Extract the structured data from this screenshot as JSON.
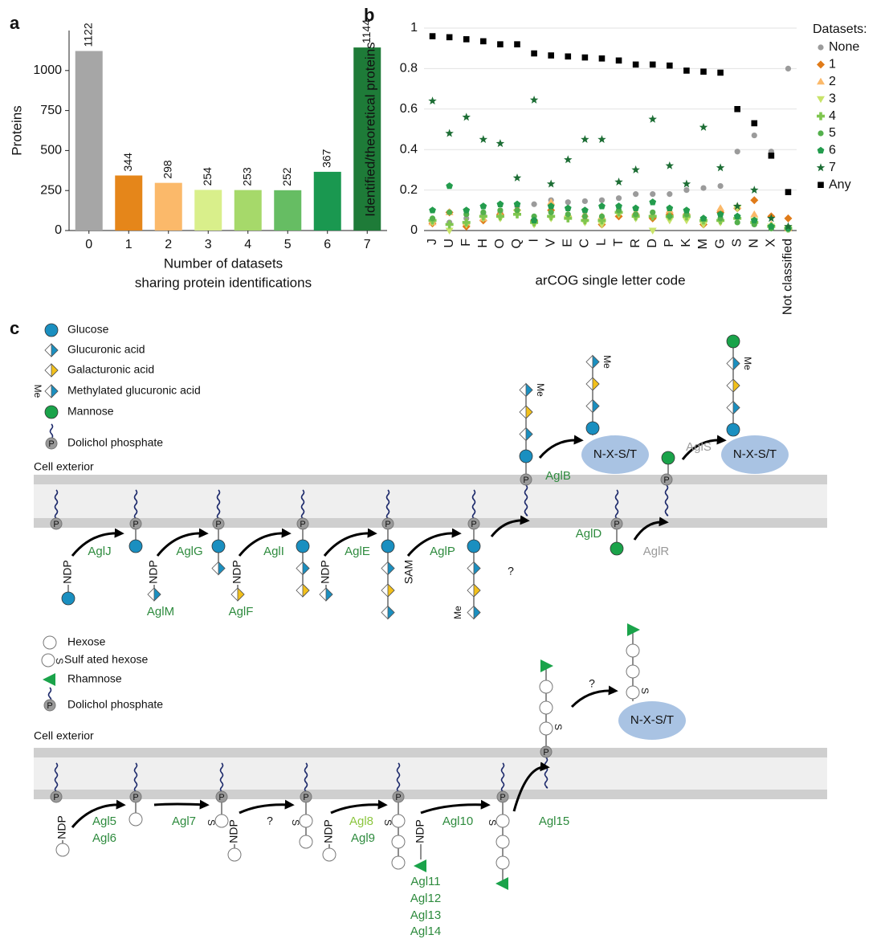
{
  "chart_data": [
    {
      "type": "bar",
      "panel_label": "a",
      "categories": [
        "0",
        "1",
        "2",
        "3",
        "4",
        "5",
        "6",
        "7"
      ],
      "values": [
        1122,
        344,
        298,
        254,
        253,
        252,
        367,
        1144
      ],
      "colors": [
        "#a6a6a6",
        "#e5861a",
        "#fbb96a",
        "#d9ef8b",
        "#a6d96a",
        "#66bd63",
        "#1a9850",
        "#1e7b38"
      ],
      "ylabel": "Proteins",
      "xlabel": [
        "Number of datasets",
        "sharing protein identifications"
      ],
      "ylim": [
        0,
        1250
      ],
      "yticks": [
        0,
        250,
        500,
        750,
        1000
      ]
    },
    {
      "type": "scatter",
      "panel_label": "b",
      "categories": [
        "J",
        "U",
        "F",
        "H",
        "O",
        "Q",
        "I",
        "V",
        "E",
        "C",
        "L",
        "T",
        "R",
        "D",
        "P",
        "K",
        "M",
        "G",
        "S",
        "N",
        "X",
        "Not classified"
      ],
      "ylabel": "Identified/theoretical proteins",
      "xlabel": "arCOG single letter code",
      "legend_title": "Datasets:",
      "ylim": [
        0,
        1
      ],
      "yticks": [
        0,
        0.2,
        0.4,
        0.6,
        0.8,
        1
      ],
      "grid": true,
      "series": [
        {
          "name": "None",
          "color": "#9b9b9b",
          "marker": "circle",
          "values": [
            0.05,
            0.04,
            0.06,
            0.08,
            0.09,
            0.12,
            0.13,
            0.15,
            0.14,
            0.145,
            0.15,
            0.16,
            0.18,
            0.18,
            0.18,
            0.2,
            0.21,
            0.22,
            0.39,
            0.47,
            0.39,
            0.8
          ]
        },
        {
          "name": "1",
          "color": "#e07b19",
          "marker": "diamond",
          "values": [
            0.035,
            0.09,
            0.02,
            0.05,
            0.08,
            0.1,
            0.05,
            0.1,
            0.07,
            0.05,
            0.03,
            0.07,
            0.08,
            0.06,
            0.08,
            0.08,
            0.03,
            0.09,
            0.11,
            0.15,
            0.07,
            0.06
          ]
        },
        {
          "name": "2",
          "color": "#fbb96a",
          "marker": "triangle-up",
          "values": [
            0.04,
            0.09,
            0.04,
            0.06,
            0.08,
            0.09,
            0.05,
            0.14,
            0.08,
            0.08,
            0.07,
            0.1,
            0.09,
            0.08,
            0.1,
            0.09,
            0.06,
            0.11,
            0.12,
            0.08,
            0.03,
            0.01
          ]
        },
        {
          "name": "3",
          "color": "#c8e36a",
          "marker": "triangle-down",
          "values": [
            0.04,
            0,
            0.03,
            0.06,
            0.06,
            0.09,
            0.03,
            0.06,
            0.06,
            0.04,
            0.03,
            0.08,
            0.06,
            0,
            0.05,
            0.05,
            0.03,
            0.04,
            0.11,
            0.05,
            0.02,
            0.01
          ]
        },
        {
          "name": "4",
          "color": "#7fc64f",
          "marker": "plus",
          "values": [
            0.05,
            0.03,
            0.04,
            0.07,
            0.07,
            0.08,
            0.04,
            0.07,
            0.06,
            0.05,
            0.05,
            0.09,
            0.07,
            0.07,
            0.07,
            0.07,
            0.05,
            0.05,
            0.06,
            0.04,
            0.02,
            0.01
          ]
        },
        {
          "name": "5",
          "color": "#54b04c",
          "marker": "circle",
          "values": [
            0.06,
            0.09,
            0.08,
            0.09,
            0.1,
            0.1,
            0.07,
            0.09,
            0.08,
            0.07,
            0.07,
            0.1,
            0.08,
            0.09,
            0.07,
            0.08,
            0.06,
            0.06,
            0.04,
            0.03,
            0.01,
            0.01
          ]
        },
        {
          "name": "6",
          "color": "#239c4d",
          "marker": "pentagon",
          "values": [
            0.1,
            0.22,
            0.1,
            0.12,
            0.13,
            0.13,
            0.05,
            0.12,
            0.11,
            0.1,
            0.12,
            0.12,
            0.11,
            0.14,
            0.11,
            0.1,
            0.06,
            0.08,
            0.07,
            0.05,
            0.02,
            0.01
          ]
        },
        {
          "name": "7",
          "color": "#1d6e35",
          "marker": "star",
          "values": [
            0.64,
            0.48,
            0.56,
            0.45,
            0.43,
            0.26,
            0.645,
            0.23,
            0.35,
            0.45,
            0.45,
            0.24,
            0.3,
            0.55,
            0.32,
            0.23,
            0.51,
            0.31,
            0.12,
            0.2,
            0.06,
            0.02
          ]
        },
        {
          "name": "Any",
          "color": "#000000",
          "marker": "square",
          "values": [
            0.96,
            0.955,
            0.945,
            0.935,
            0.92,
            0.92,
            0.875,
            0.865,
            0.86,
            0.855,
            0.85,
            0.84,
            0.82,
            0.82,
            0.815,
            0.79,
            0.785,
            0.78,
            0.6,
            0.53,
            0.37,
            0.19
          ]
        }
      ]
    }
  ],
  "diagram": {
    "panel_label": "c",
    "top": {
      "legend": [
        "Glucose",
        "Glucuronic acid",
        "Galacturonic acid",
        "Methylated glucuronic acid",
        "Mannose",
        "Dolichol phosphate"
      ],
      "legend_me": "Me",
      "legend_p": "P",
      "cell_exterior": "Cell exterior",
      "phosphates": [
        "P",
        "P",
        "P",
        "P",
        "P",
        "P",
        "P",
        "P",
        "P"
      ],
      "donors": [
        "NDP",
        "NDP",
        "NDP",
        "NDP",
        "SAM"
      ],
      "enzymes": [
        "AglJ",
        "AglG",
        "AglI",
        "AglE",
        "AglP",
        "AglM",
        "AglF",
        "AglB",
        "AglD",
        "AglR",
        "AglS"
      ],
      "unknown": "?",
      "me_labels": [
        "Me",
        "Me",
        "Me",
        "Me"
      ],
      "acceptors": [
        "N-X-S/T",
        "N-X-S/T"
      ]
    },
    "bottom": {
      "legend": [
        "Hexose",
        "Sulf ated hexose",
        "Rhamnose",
        "Dolichol phosphate"
      ],
      "legend_s": "S",
      "legend_p": "P",
      "cell_exterior": "Cell exterior",
      "phosphates": [
        "P",
        "P",
        "P",
        "P",
        "P",
        "P",
        "P"
      ],
      "donors": [
        "NDP",
        "NDP",
        "NDP",
        "NDP"
      ],
      "enzymes": [
        "Agl5",
        "Agl6",
        "Agl7",
        "Agl8",
        "Agl9",
        "Agl10",
        "Agl11",
        "Agl12",
        "Agl13",
        "Agl14",
        "Agl15"
      ],
      "unknown": [
        "?",
        "?"
      ],
      "s_labels": [
        "S",
        "S",
        "S",
        "S",
        "S",
        "S"
      ],
      "acceptors": [
        "N-X-S/T"
      ]
    }
  }
}
